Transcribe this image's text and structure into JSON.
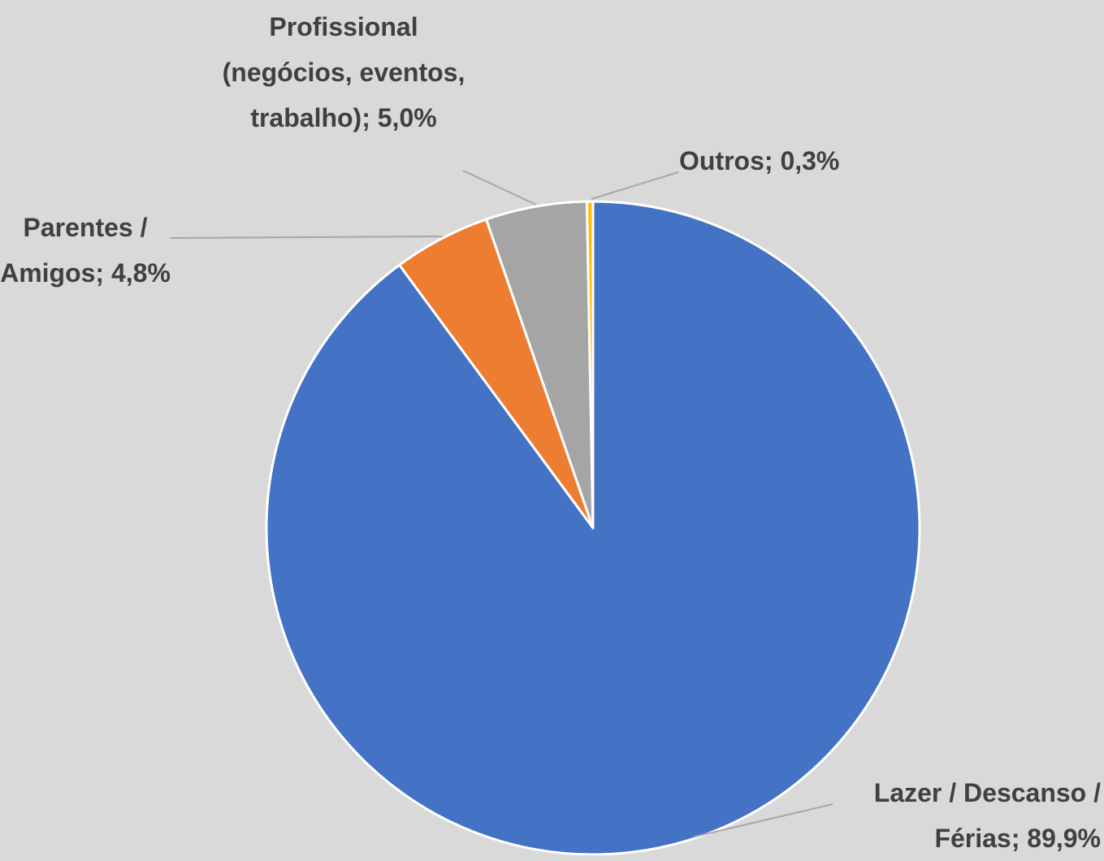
{
  "chart_data": {
    "type": "pie",
    "values": [
      89.9,
      4.8,
      5.0,
      0.3
    ],
    "value_labels": [
      "Lazer / Descanso / Férias; 89,9%",
      "Parentes / Amigos; 4,8%",
      "Profissional (negócios, eventos, trabalho); 5,0%",
      "Outros; 0,3%"
    ],
    "colors": [
      "#4472c4",
      "#ed7d31",
      "#a5a5a5",
      "#ffc000"
    ]
  }
}
